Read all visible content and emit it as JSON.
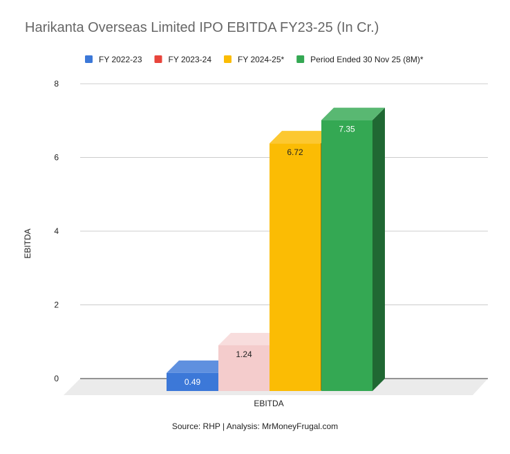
{
  "chart_data": {
    "type": "bar",
    "title": "Harikanta Overseas Limited IPO EBITDA FY23-25 (In Cr.)",
    "xlabel": "EBITDA",
    "ylabel": "EBITDA",
    "categories": [
      "EBITDA"
    ],
    "ylim": [
      0,
      8
    ],
    "yticks": [
      "0",
      "2",
      "4",
      "6",
      "8"
    ],
    "grid": true,
    "legend_position": "top",
    "series": [
      {
        "name": "FY 2022-23",
        "values": [
          0.49
        ],
        "label": "0.49",
        "color": "#3C78D8",
        "label_color": "#ffffff"
      },
      {
        "name": "FY 2023-24",
        "values": [
          1.24
        ],
        "label": "1.24",
        "color": "#E8453C",
        "label_color": "#222222",
        "faded": true
      },
      {
        "name": "FY 2024-25*",
        "values": [
          6.72
        ],
        "label": "6.72",
        "color": "#FBBC04",
        "label_color": "#222222"
      },
      {
        "name": "Period Ended 30 Nov 25 (8M)*",
        "values": [
          7.35
        ],
        "label": "7.35",
        "color": "#34A853",
        "label_color": "#ffffff"
      }
    ],
    "source": "Source: RHP | Analysis: MrMoneyFrugal.com"
  }
}
